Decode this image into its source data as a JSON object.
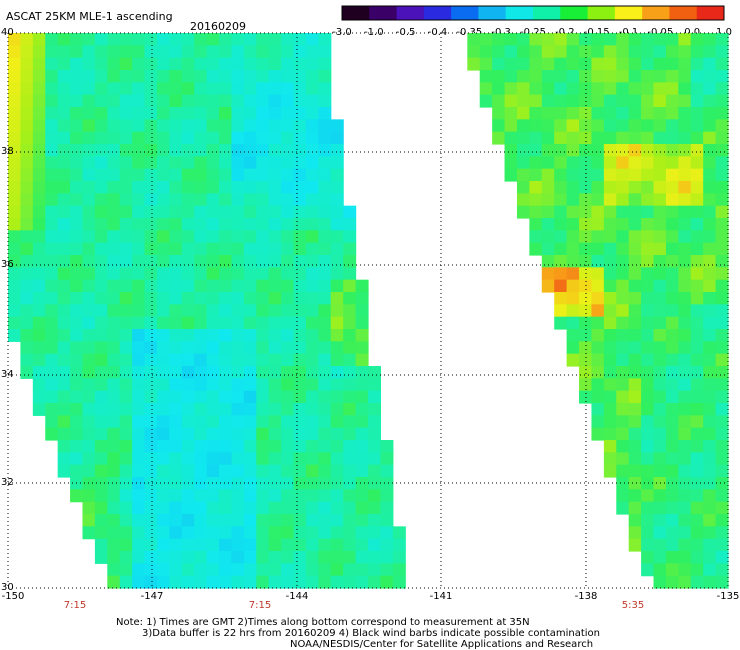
{
  "header": {
    "title": "ASCAT 25KM MLE-1 ascending",
    "date": "20160209"
  },
  "colorbar": {
    "labels": [
      "-3.0",
      "-1.0",
      "-0.5",
      "-0.4",
      "-0.35",
      "-0.3",
      "-0.25",
      "-0.2",
      "-0.15",
      "-0.1",
      "-0.05",
      "0.0",
      "1.0"
    ],
    "colors": [
      "#200020",
      "#3a0068",
      "#4a12b8",
      "#2a2ae0",
      "#0a6cf0",
      "#10b4f0",
      "#10e8e8",
      "#10f0a8",
      "#18f038",
      "#8cf010",
      "#f8f018",
      "#f8a018",
      "#f06010",
      "#e82818"
    ]
  },
  "map": {
    "lat_labels": [
      "40",
      "38",
      "36",
      "34",
      "32",
      "30"
    ],
    "lon_labels": [
      "-150",
      "-147",
      "-144",
      "-141",
      "-138",
      "-135"
    ],
    "time_labels": [
      "7:15",
      "7:15",
      "5:35"
    ]
  },
  "notes": {
    "line1": "Note: 1) Times are GMT 2)Times along bottom correspond to measurement at 35N",
    "line2": "3)Data buffer is 22 hrs from 20160209 4) Black wind barbs indicate possible contamination",
    "line3": "NOAA/NESDIS/Center for Satellite Applications and Research"
  }
}
